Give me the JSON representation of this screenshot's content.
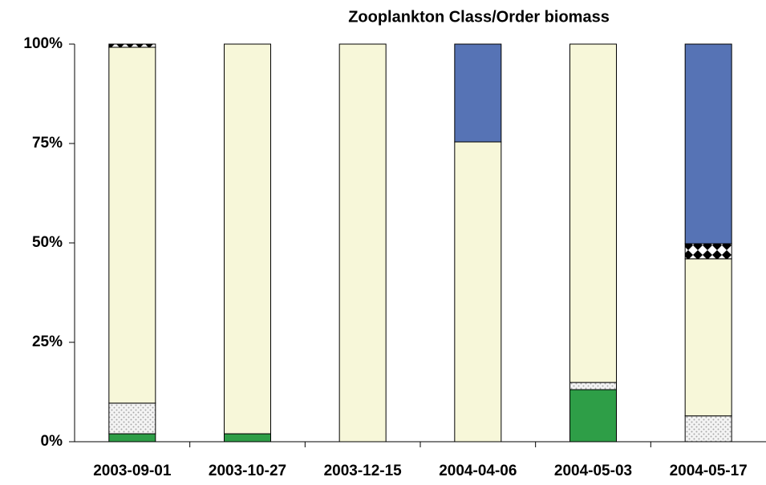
{
  "chart_data": {
    "type": "stacked_bar",
    "title": "Zooplankton Class/Order biomass",
    "categories": [
      "2003-09-01",
      "2003-10-27",
      "2003-12-15",
      "2004-04-06",
      "2004-05-03",
      "2004-05-17"
    ],
    "series": [
      {
        "color": "#2e9e47",
        "values": [
          2,
          2,
          0,
          0,
          13.1,
          0
        ]
      },
      {
        "color": "#d0d0d0",
        "pattern": "dots",
        "values": [
          7.7,
          0,
          0,
          0,
          1.8,
          6.5
        ]
      },
      {
        "color": "#f7f7d9",
        "values": [
          89.5,
          98,
          100,
          75.4,
          85.1,
          39.5
        ]
      },
      {
        "color": "#000000",
        "pattern": "checker",
        "values": [
          0.8,
          0,
          0,
          0,
          0,
          3.8
        ]
      },
      {
        "color": "#5673b5",
        "values": [
          0,
          0,
          0,
          24.6,
          0,
          50.2
        ]
      }
    ],
    "ylim": [
      0,
      100
    ],
    "yticks": [
      {
        "value": 0,
        "label": "0%"
      },
      {
        "value": 25,
        "label": "25%"
      },
      {
        "value": 50,
        "label": "50%"
      },
      {
        "value": 75,
        "label": "75%"
      },
      {
        "value": 100,
        "label": "100%"
      }
    ],
    "grid": false
  }
}
